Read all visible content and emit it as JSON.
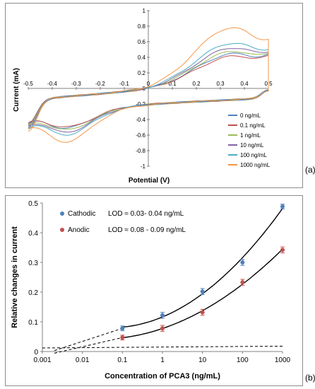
{
  "panels": {
    "a": {
      "tag": "(a)"
    },
    "b": {
      "tag": "(b)"
    }
  },
  "chart_data": [
    {
      "type": "line",
      "xlabel": "Potential (V)",
      "ylabel": "Current (mA)",
      "xlim": [
        -0.5,
        0.5
      ],
      "ylim": [
        -1,
        1
      ],
      "x_ticks": [
        "-0.5",
        "-0.4",
        "-0.3",
        "-0.2",
        "-0.1",
        "0",
        "0.1",
        "0.2",
        "0.3",
        "0.4",
        "0.5"
      ],
      "y_ticks": [
        "1",
        "0.8",
        "0.6",
        "0.4",
        "0.2",
        "0",
        "-0.2",
        "-0.4",
        "-0.6",
        "-0.8",
        "-1"
      ],
      "legend_position": "right",
      "grid": false,
      "series": [
        {
          "name": "0 ng/mL",
          "color": "#4f81bd",
          "anodic_peak": 0.52,
          "cathodic_peak": -0.47,
          "vertex_upper": 0.62,
          "vertex_lower": -0.58
        },
        {
          "name": "0.1 ng/mL",
          "color": "#c0504d",
          "anodic_peak": 0.5,
          "cathodic_peak": -0.46,
          "vertex_upper": 0.6,
          "vertex_lower": -0.56
        },
        {
          "name": "1 ng/mL",
          "color": "#9bbb59",
          "anodic_peak": 0.54,
          "cathodic_peak": -0.49,
          "vertex_upper": 0.64,
          "vertex_lower": -0.6
        },
        {
          "name": "10 ng/mL",
          "color": "#8064a2",
          "anodic_peak": 0.57,
          "cathodic_peak": -0.52,
          "vertex_upper": 0.67,
          "vertex_lower": -0.63
        },
        {
          "name": "100 ng/mL",
          "color": "#4bacc6",
          "anodic_peak": 0.61,
          "cathodic_peak": -0.55,
          "vertex_upper": 0.71,
          "vertex_lower": -0.67
        },
        {
          "name": "1000 ng/mL",
          "color": "#f79646",
          "anodic_peak": 0.74,
          "cathodic_peak": -0.63,
          "vertex_upper": 0.86,
          "vertex_lower": -0.73
        }
      ]
    },
    {
      "type": "scatter",
      "xlabel": "Concentration of PCA3 (ng/mL)",
      "ylabel": "Relative changes in current",
      "xscale": "log",
      "xlim": [
        0.001,
        1000
      ],
      "ylim": [
        0,
        0.5
      ],
      "x_ticks": [
        "0.001",
        "0.01",
        "0.1",
        "1",
        "10",
        "100",
        "1000"
      ],
      "y_ticks": [
        "0",
        "0.1",
        "0.2",
        "0.3",
        "0.4",
        "0.5"
      ],
      "legend_position": "top-left",
      "series": [
        {
          "name": "Cathodic",
          "color": "#4f81bd",
          "lod_text": "LOD ≈ 0.03- 0.04 ng/mL",
          "x": [
            0.1,
            1,
            10,
            100,
            1000
          ],
          "y": [
            0.078,
            0.122,
            0.202,
            0.3,
            0.488
          ],
          "err": [
            0.008,
            0.01,
            0.01,
            0.01,
            0.008
          ]
        },
        {
          "name": "Anodic",
          "color": "#c0504d",
          "lod_text": "LOD ≈ 0.08 - 0.09 ng/mL",
          "x": [
            0.1,
            1,
            10,
            100,
            1000
          ],
          "y": [
            0.047,
            0.078,
            0.132,
            0.233,
            0.342
          ],
          "err": [
            0.008,
            0.01,
            0.01,
            0.01,
            0.01
          ]
        }
      ],
      "baseline": {
        "x": [
          0.001,
          1000
        ],
        "y": [
          0.012,
          0.018
        ]
      }
    }
  ]
}
